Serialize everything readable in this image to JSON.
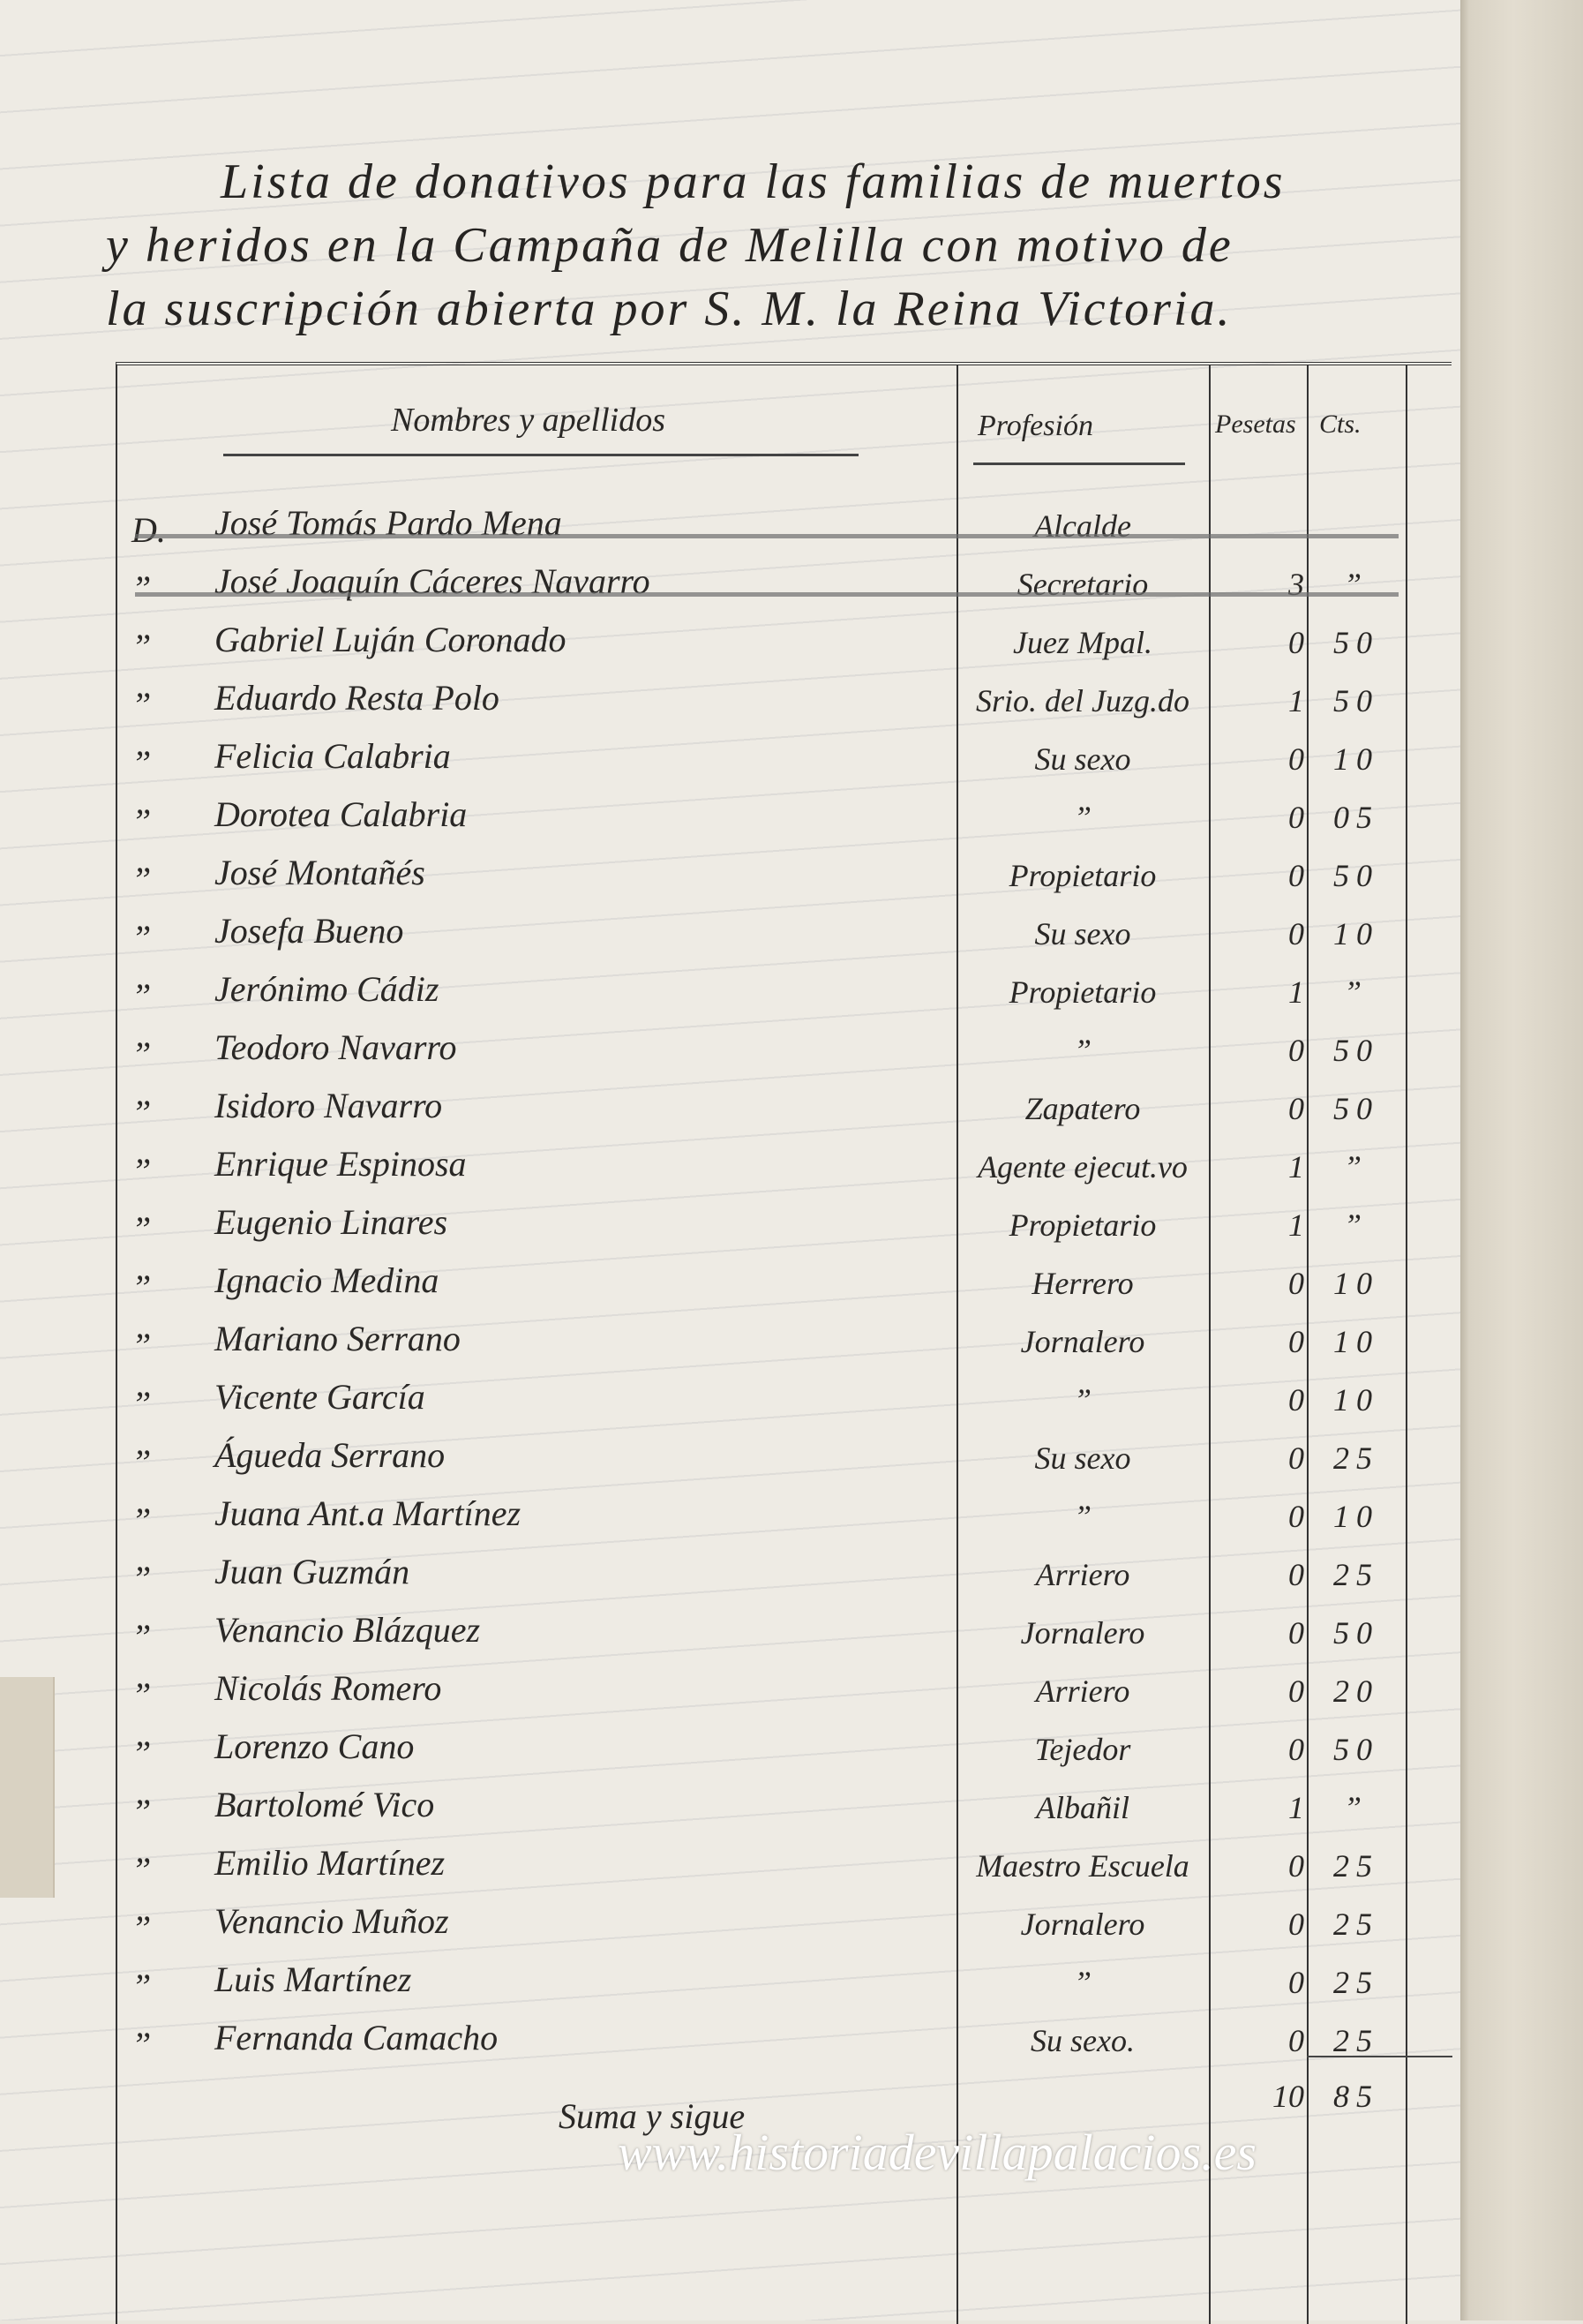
{
  "title": {
    "lines": [
      "Lista de donativos para las familias de muertos",
      "y heridos en la Campaña de Melilla con motivo de",
      "la suscripción abierta por S. M. la Reina Victoria."
    ]
  },
  "table": {
    "headers": {
      "name": "Nombres y apellidos",
      "profession": "Profesión",
      "pesetas": "Pesetas",
      "centimos": "Cts."
    },
    "rows": [
      {
        "prefix": "D.",
        "name": "José Tomás Pardo Mena",
        "profession": "Alcalde",
        "pesetas": "",
        "centimos": "",
        "struck": true
      },
      {
        "prefix": "”",
        "name": "José Joaquín Cáceres Navarro",
        "profession": "Secretario",
        "pesetas": "3",
        "centimos": "”",
        "struck": true
      },
      {
        "prefix": "”",
        "name": "Gabriel Luján Coronado",
        "profession": "Juez Mpal.",
        "pesetas": "0",
        "centimos": "50"
      },
      {
        "prefix": "”",
        "name": "Eduardo Resta Polo",
        "profession": "Srio. del Juzg.do",
        "pesetas": "1",
        "centimos": "50"
      },
      {
        "prefix": "”",
        "name": "Felicia Calabria",
        "profession": "Su sexo",
        "pesetas": "0",
        "centimos": "10"
      },
      {
        "prefix": "”",
        "name": "Dorotea Calabria",
        "profession": "”",
        "pesetas": "0",
        "centimos": "05"
      },
      {
        "prefix": "”",
        "name": "José Montañés",
        "profession": "Propietario",
        "pesetas": "0",
        "centimos": "50"
      },
      {
        "prefix": "”",
        "name": "Josefa Bueno",
        "profession": "Su sexo",
        "pesetas": "0",
        "centimos": "10"
      },
      {
        "prefix": "”",
        "name": "Jerónimo Cádiz",
        "profession": "Propietario",
        "pesetas": "1",
        "centimos": "”"
      },
      {
        "prefix": "”",
        "name": "Teodoro Navarro",
        "profession": "”",
        "pesetas": "0",
        "centimos": "50"
      },
      {
        "prefix": "”",
        "name": "Isidoro Navarro",
        "profession": "Zapatero",
        "pesetas": "0",
        "centimos": "50"
      },
      {
        "prefix": "”",
        "name": "Enrique Espinosa",
        "profession": "Agente ejecut.vo",
        "pesetas": "1",
        "centimos": "”"
      },
      {
        "prefix": "”",
        "name": "Eugenio Linares",
        "profession": "Propietario",
        "pesetas": "1",
        "centimos": "”"
      },
      {
        "prefix": "”",
        "name": "Ignacio Medina",
        "profession": "Herrero",
        "pesetas": "0",
        "centimos": "10"
      },
      {
        "prefix": "”",
        "name": "Mariano Serrano",
        "profession": "Jornalero",
        "pesetas": "0",
        "centimos": "10"
      },
      {
        "prefix": "”",
        "name": "Vicente García",
        "profession": "”",
        "pesetas": "0",
        "centimos": "10"
      },
      {
        "prefix": "”",
        "name": "Águeda Serrano",
        "profession": "Su sexo",
        "pesetas": "0",
        "centimos": "25"
      },
      {
        "prefix": "”",
        "name": "Juana Ant.a Martínez",
        "profession": "”",
        "pesetas": "0",
        "centimos": "10"
      },
      {
        "prefix": "”",
        "name": "Juan Guzmán",
        "profession": "Arriero",
        "pesetas": "0",
        "centimos": "25"
      },
      {
        "prefix": "”",
        "name": "Venancio Blázquez",
        "profession": "Jornalero",
        "pesetas": "0",
        "centimos": "50"
      },
      {
        "prefix": "”",
        "name": "Nicolás Romero",
        "profession": "Arriero",
        "pesetas": "0",
        "centimos": "20"
      },
      {
        "prefix": "”",
        "name": "Lorenzo Cano",
        "profession": "Tejedor",
        "pesetas": "0",
        "centimos": "50"
      },
      {
        "prefix": "”",
        "name": "Bartolomé Vico",
        "profession": "Albañil",
        "pesetas": "1",
        "centimos": "”"
      },
      {
        "prefix": "”",
        "name": "Emilio Martínez",
        "profession": "Maestro Escuela",
        "pesetas": "0",
        "centimos": "25"
      },
      {
        "prefix": "”",
        "name": "Venancio Muñoz",
        "profession": "Jornalero",
        "pesetas": "0",
        "centimos": "25"
      },
      {
        "prefix": "”",
        "name": "Luis Martínez",
        "profession": "”",
        "pesetas": "0",
        "centimos": "25"
      },
      {
        "prefix": "”",
        "name": "Fernanda Camacho",
        "profession": "Su sexo.",
        "pesetas": "0",
        "centimos": "25"
      }
    ],
    "total": {
      "label": "Suma y sigue",
      "pesetas": "10",
      "centimos": "85"
    }
  },
  "watermark": "www.historiadevillapalacios.es"
}
